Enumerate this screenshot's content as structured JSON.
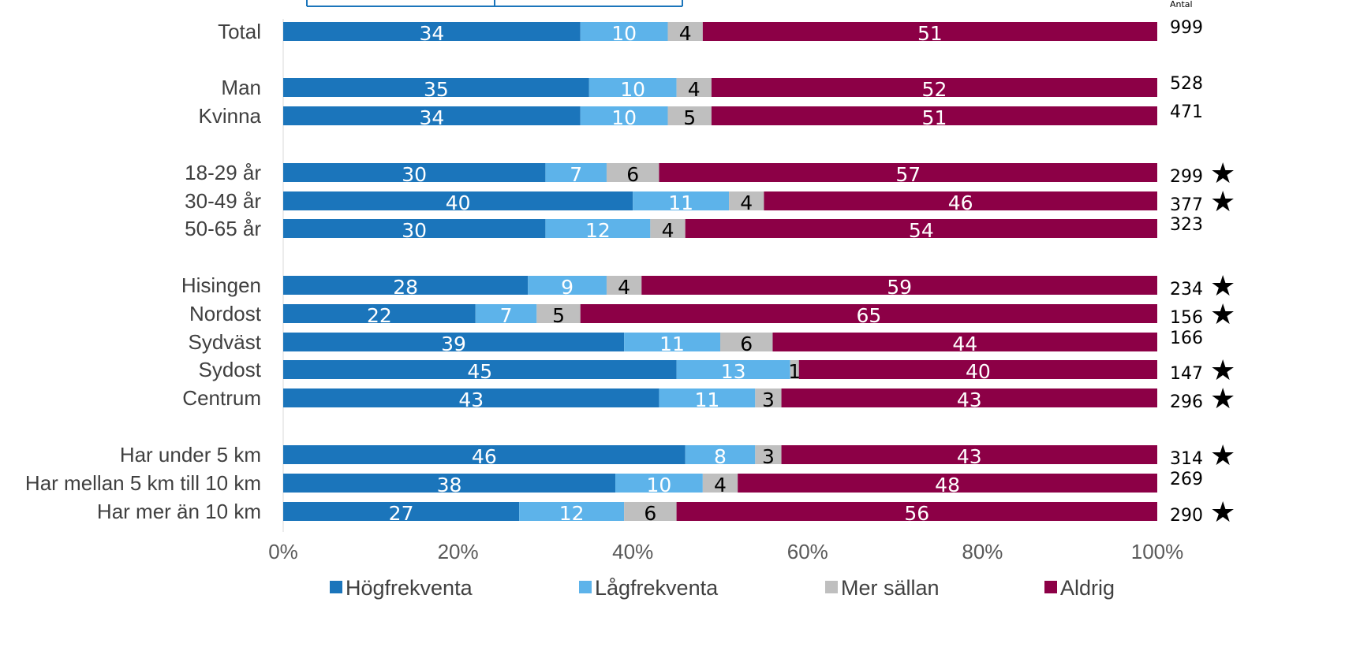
{
  "chart_data": {
    "type": "bar",
    "orientation": "horizontal",
    "stacked": true,
    "percent": true,
    "n_header": "Antal",
    "categories": [
      "Total",
      "Man",
      "Kvinna",
      "18-29 år",
      "30-49 år",
      "50-65 år",
      "Hisingen",
      "Nordost",
      "Sydväst",
      "Sydost",
      "Centrum",
      "Har under 5 km",
      "Har mellan 5 km till 10 km",
      "Har mer än 10 km"
    ],
    "series": [
      {
        "name": "Högfrekventa",
        "color": "#1B75BB",
        "label_color": "#ffffff",
        "values": [
          34,
          35,
          34,
          30,
          40,
          30,
          28,
          22,
          39,
          45,
          43,
          46,
          38,
          27
        ]
      },
      {
        "name": "Lågfrekventa",
        "color": "#5DB3EA",
        "label_color": "#ffffff",
        "values": [
          10,
          10,
          10,
          7,
          11,
          12,
          9,
          7,
          11,
          13,
          11,
          8,
          10,
          12
        ]
      },
      {
        "name": "Mer sällan",
        "color": "#BFBFBF",
        "label_color": "#000000",
        "values": [
          4,
          4,
          5,
          6,
          4,
          4,
          4,
          5,
          6,
          1,
          3,
          3,
          4,
          6
        ]
      },
      {
        "name": "Aldrig",
        "color": "#8C0046",
        "label_color": "#ffffff",
        "values": [
          51,
          52,
          51,
          57,
          46,
          54,
          59,
          65,
          44,
          40,
          43,
          43,
          48,
          56
        ]
      }
    ],
    "n": [
      "999",
      "528",
      "471",
      "299",
      "377",
      "323",
      "234",
      "156",
      "166",
      "147",
      "296",
      "314",
      "269",
      "290"
    ],
    "star": [
      false,
      false,
      false,
      true,
      true,
      false,
      true,
      true,
      false,
      true,
      true,
      true,
      false,
      true
    ],
    "xticks": [
      "0%",
      "20%",
      "40%",
      "60%",
      "80%",
      "100%"
    ],
    "xlim": [
      0,
      100
    ],
    "legend_position": "bottom",
    "grid": false
  }
}
